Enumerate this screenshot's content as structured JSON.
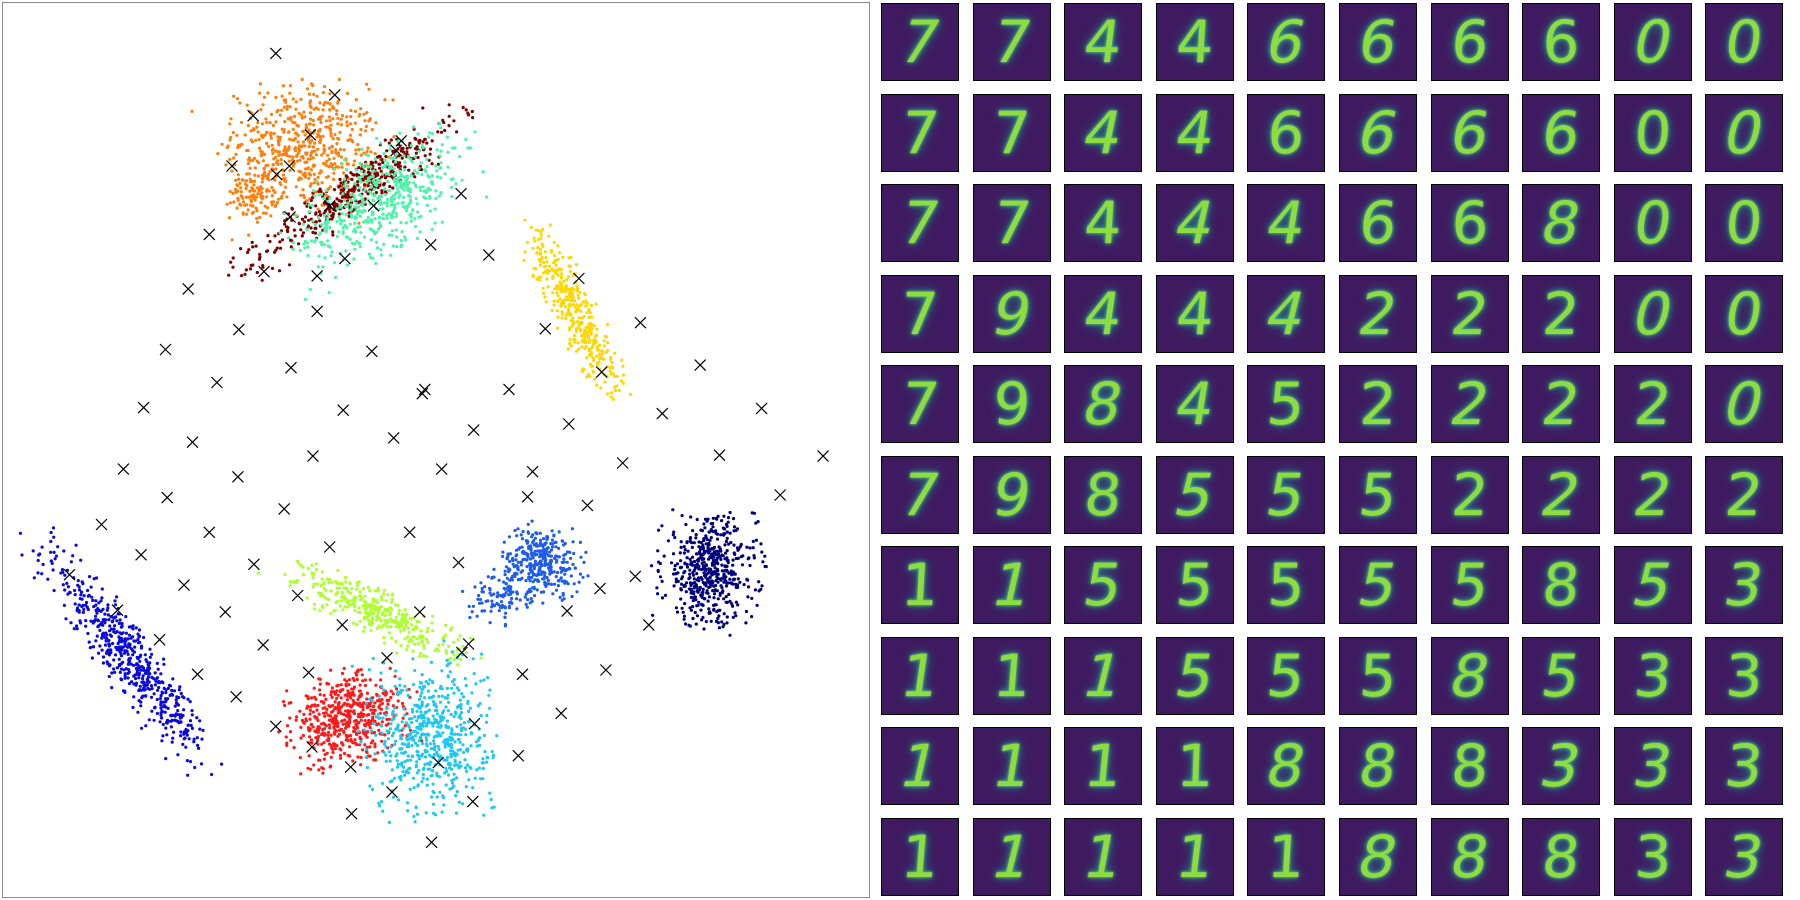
{
  "chart_data": [
    {
      "type": "scatter",
      "title": "",
      "xlabel": "",
      "ylabel": "",
      "xlim": [
        0,
        100
      ],
      "ylim": [
        0,
        100
      ],
      "grid": false,
      "axes_visible": false,
      "legend": "none",
      "series": [
        {
          "color": "#ff7f0e",
          "clusters": [
            {
              "cx": 34,
              "cy": 85,
              "rx": 9,
              "ry": 7.5,
              "count": 520,
              "rot": -10
            },
            {
              "cx": 28,
              "cy": 80,
              "rx": 3,
              "ry": 3.5,
              "count": 120,
              "rot": 0
            }
          ]
        },
        {
          "color": "#800000",
          "clusters": [
            {
              "cx": 40,
              "cy": 80,
              "rx": 15,
              "ry": 2.6,
              "count": 420,
              "rot": 34
            }
          ]
        },
        {
          "color": "#4cf3a8",
          "clusters": [
            {
              "cx": 43,
              "cy": 79,
              "rx": 11,
              "ry": 5.5,
              "count": 500,
              "rot": 30
            }
          ]
        },
        {
          "color": "#ffd700",
          "clusters": [
            {
              "cx": 66,
              "cy": 66,
              "rx": 10.5,
              "ry": 2.4,
              "count": 380,
              "rot": -62
            }
          ]
        },
        {
          "color": "#1e5cf0",
          "clusters": [
            {
              "cx": 62,
              "cy": 37,
              "rx": 5,
              "ry": 4.2,
              "count": 330,
              "rot": 0
            },
            {
              "cx": 57,
              "cy": 33,
              "rx": 3.5,
              "ry": 3,
              "count": 90,
              "rot": 0
            }
          ]
        },
        {
          "color": "#00007f",
          "clusters": [
            {
              "cx": 82,
              "cy": 36,
              "rx": 5.8,
              "ry": 6.2,
              "count": 520,
              "rot": 0
            }
          ]
        },
        {
          "color": "#0a0adc",
          "clusters": [
            {
              "cx": 13,
              "cy": 26,
              "rx": 15,
              "ry": 2.8,
              "count": 560,
              "rot": -52
            }
          ]
        },
        {
          "color": "#adff2f",
          "clusters": [
            {
              "cx": 43,
              "cy": 31,
              "rx": 11,
              "ry": 2.6,
              "count": 360,
              "rot": -25
            }
          ]
        },
        {
          "color": "#ff1a1a",
          "clusters": [
            {
              "cx": 39,
              "cy": 19,
              "rx": 7,
              "ry": 5,
              "count": 520,
              "rot": 15
            }
          ]
        },
        {
          "color": "#1ec8f0",
          "clusters": [
            {
              "cx": 49,
              "cy": 17,
              "rx": 7,
              "ry": 8.5,
              "count": 580,
              "rot": 5
            }
          ]
        }
      ],
      "markers": {
        "symbol": "x",
        "color": "#000000",
        "points": [
          [
            30.5,
            95.8
          ],
          [
            37.5,
            91.0
          ],
          [
            27.8,
            88.6
          ],
          [
            34.6,
            86.4
          ],
          [
            25.3,
            82.8
          ],
          [
            30.6,
            81.8
          ],
          [
            45.4,
            85.7
          ],
          [
            44.8,
            84.6
          ],
          [
            32.1,
            82.8
          ],
          [
            52.5,
            79.6
          ],
          [
            36.9,
            78.2
          ],
          [
            42.1,
            78.2
          ],
          [
            32.2,
            76.9
          ],
          [
            22.6,
            74.9
          ],
          [
            38.7,
            72.1
          ],
          [
            48.9,
            73.7
          ],
          [
            29.1,
            70.6
          ],
          [
            55.8,
            72.5
          ],
          [
            20.1,
            68.6
          ],
          [
            35.4,
            70.1
          ],
          [
            66.5,
            69.8
          ],
          [
            73.8,
            64.7
          ],
          [
            62.5,
            64.0
          ],
          [
            26.1,
            63.9
          ],
          [
            35.4,
            66.0
          ],
          [
            17.4,
            61.6
          ],
          [
            41.9,
            61.4
          ],
          [
            80.9,
            59.8
          ],
          [
            32.3,
            59.5
          ],
          [
            23.5,
            57.8
          ],
          [
            48.2,
            57.0
          ],
          [
            69.2,
            59.0
          ],
          [
            58.2,
            57.0
          ],
          [
            47.9,
            56.5
          ],
          [
            14.8,
            54.9
          ],
          [
            38.5,
            54.6
          ],
          [
            88.2,
            54.8
          ],
          [
            65.3,
            53.0
          ],
          [
            76.4,
            54.2
          ],
          [
            54.0,
            52.3
          ],
          [
            20.6,
            50.9
          ],
          [
            44.5,
            51.4
          ],
          [
            83.2,
            49.4
          ],
          [
            95.5,
            49.3
          ],
          [
            71.7,
            48.5
          ],
          [
            12.4,
            47.8
          ],
          [
            26.0,
            46.9
          ],
          [
            34.9,
            49.3
          ],
          [
            50.2,
            47.8
          ],
          [
            61.0,
            47.5
          ],
          [
            60.4,
            44.6
          ],
          [
            17.6,
            44.5
          ],
          [
            31.5,
            43.2
          ],
          [
            90.4,
            44.8
          ],
          [
            67.5,
            43.6
          ],
          [
            9.8,
            41.4
          ],
          [
            22.6,
            40.5
          ],
          [
            46.4,
            40.5
          ],
          [
            36.9,
            38.8
          ],
          [
            14.5,
            37.9
          ],
          [
            27.9,
            36.8
          ],
          [
            52.2,
            37.0
          ],
          [
            6.0,
            35.6
          ],
          [
            19.6,
            34.4
          ],
          [
            73.2,
            35.4
          ],
          [
            33.1,
            33.2
          ],
          [
            69.0,
            34.0
          ],
          [
            47.6,
            31.3
          ],
          [
            11.7,
            31.5
          ],
          [
            24.5,
            31.3
          ],
          [
            38.4,
            29.8
          ],
          [
            52.6,
            26.6
          ],
          [
            65.1,
            31.4
          ],
          [
            74.8,
            29.8
          ],
          [
            16.7,
            28.1
          ],
          [
            29.0,
            27.5
          ],
          [
            53.4,
            27.6
          ],
          [
            43.7,
            26.0
          ],
          [
            21.2,
            24.1
          ],
          [
            34.4,
            24.3
          ],
          [
            69.7,
            24.6
          ],
          [
            59.8,
            24.1
          ],
          [
            25.8,
            21.5
          ],
          [
            54.1,
            18.4
          ],
          [
            30.5,
            18.1
          ],
          [
            64.4,
            19.6
          ],
          [
            34.8,
            15.7
          ],
          [
            59.3,
            14.7
          ],
          [
            39.4,
            13.4
          ],
          [
            49.8,
            13.9
          ],
          [
            44.3,
            10.5
          ],
          [
            53.9,
            9.4
          ],
          [
            39.5,
            8.0
          ],
          [
            49.0,
            4.7
          ]
        ]
      }
    },
    {
      "type": "image-grid",
      "rows": 10,
      "cols": 10,
      "colormap": "viridis",
      "cells": [
        [
          "7",
          "7",
          "4",
          "4",
          "6",
          "6",
          "6",
          "6",
          "0",
          "0"
        ],
        [
          "7",
          "7",
          "4",
          "4",
          "6",
          "6",
          "6",
          "6",
          "0",
          "0"
        ],
        [
          "7",
          "7",
          "4",
          "4",
          "4",
          "6",
          "6",
          "8",
          "0",
          "0"
        ],
        [
          "7",
          "9",
          "4",
          "4",
          "4",
          "2",
          "2",
          "2",
          "0",
          "0"
        ],
        [
          "7",
          "9",
          "8",
          "4",
          "5",
          "2",
          "2",
          "2",
          "2",
          "0"
        ],
        [
          "7",
          "9",
          "8",
          "5",
          "5",
          "5",
          "2",
          "2",
          "2",
          "2"
        ],
        [
          "1",
          "1",
          "5",
          "5",
          "5",
          "5",
          "5",
          "8",
          "5",
          "3"
        ],
        [
          "1",
          "1",
          "1",
          "5",
          "5",
          "5",
          "8",
          "5",
          "3",
          "3"
        ],
        [
          "1",
          "1",
          "1",
          "1",
          "8",
          "8",
          "8",
          "3",
          "3",
          "3"
        ],
        [
          "1",
          "1",
          "1",
          "1",
          "1",
          "8",
          "8",
          "8",
          "3",
          "3"
        ]
      ]
    }
  ]
}
